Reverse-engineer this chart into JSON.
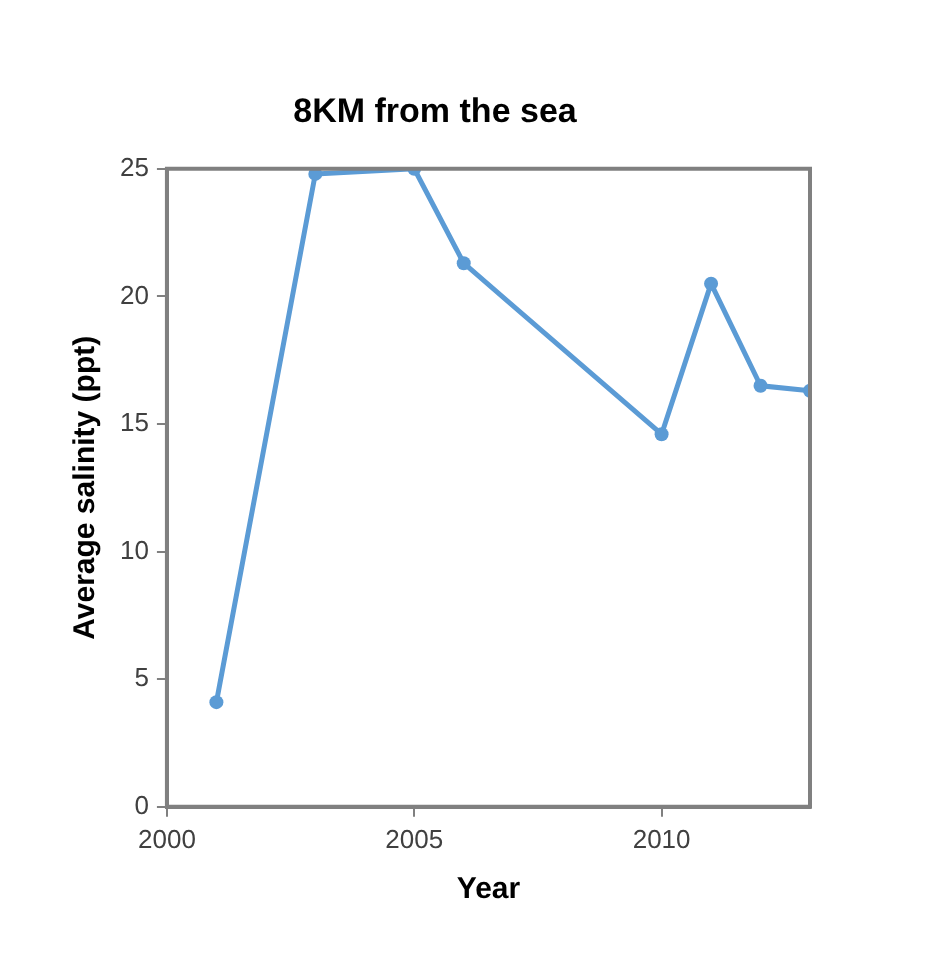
{
  "chart_data": {
    "type": "line",
    "title": "8KM from the sea",
    "xlabel": "Year",
    "ylabel": "Average salinity (ppt)",
    "x": [
      2001,
      2003,
      2005,
      2006,
      2010,
      2011,
      2012,
      2013
    ],
    "series": [
      {
        "color": "#5b9bd5",
        "values": [
          4.1,
          24.8,
          25.0,
          21.3,
          14.6,
          20.5,
          16.5,
          16.3
        ]
      }
    ],
    "xlim": [
      2000,
      2013
    ],
    "xticks": [
      2000,
      2005,
      2010
    ],
    "ylim": [
      0,
      25
    ],
    "yticks": [
      0,
      5,
      10,
      15,
      20,
      25
    ],
    "grid": false,
    "legend": false,
    "marker": "circle",
    "line_style": "solid"
  }
}
